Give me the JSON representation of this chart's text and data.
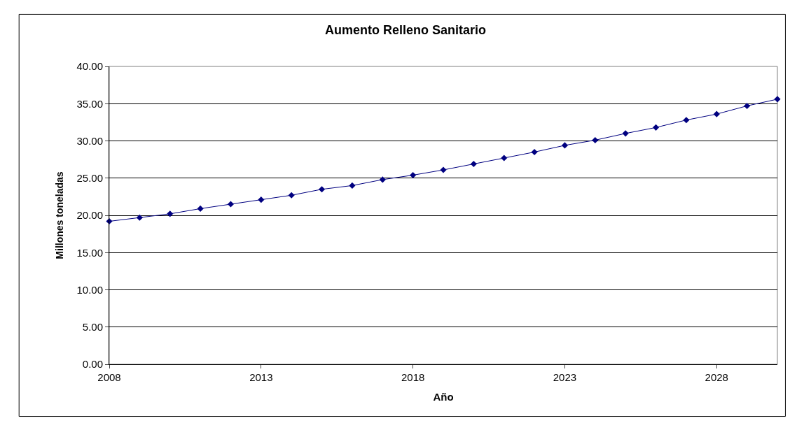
{
  "chart_data": {
    "type": "line",
    "title": "Aumento Relleno Sanitario",
    "xlabel": "Año",
    "ylabel": "Millones toneladas",
    "x": [
      2008,
      2009,
      2010,
      2011,
      2012,
      2013,
      2014,
      2015,
      2016,
      2017,
      2018,
      2019,
      2020,
      2021,
      2022,
      2023,
      2024,
      2025,
      2026,
      2027,
      2028,
      2029,
      2030
    ],
    "series": [
      {
        "color": "#000080",
        "values": [
          19.2,
          19.7,
          20.2,
          20.9,
          21.5,
          22.1,
          22.7,
          23.5,
          24.0,
          24.8,
          25.4,
          26.1,
          26.9,
          27.7,
          28.5,
          29.4,
          30.1,
          31.0,
          31.8,
          32.8,
          33.6,
          34.7,
          35.6
        ]
      }
    ],
    "xlim": [
      2008,
      2030
    ],
    "xticks": [
      2008,
      2013,
      2018,
      2023,
      2028
    ],
    "ylim": [
      0,
      40
    ],
    "yticks": [
      {
        "value": 0,
        "label": "0.00"
      },
      {
        "value": 5,
        "label": "5.00"
      },
      {
        "value": 10,
        "label": "10.00"
      },
      {
        "value": 15,
        "label": "15.00"
      },
      {
        "value": 20,
        "label": "20.00"
      },
      {
        "value": 25,
        "label": "25.00"
      },
      {
        "value": 30,
        "label": "30.00"
      },
      {
        "value": 35,
        "label": "35.00"
      },
      {
        "value": 40,
        "label": "40.00"
      }
    ],
    "grid": "y",
    "marker": "diamond",
    "line_style": "solid"
  }
}
